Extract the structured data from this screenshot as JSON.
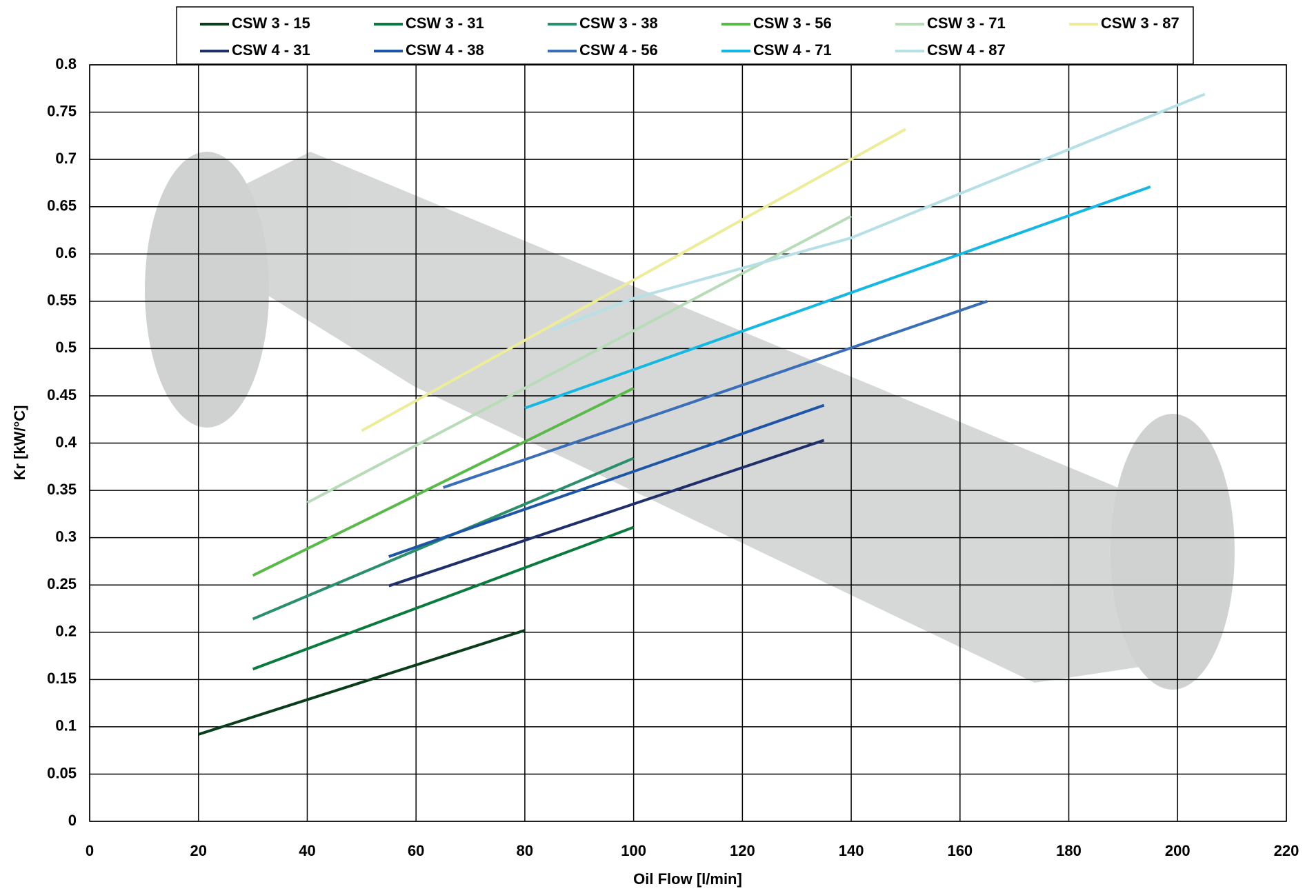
{
  "chart_data": {
    "type": "line",
    "x_label": "Oil Flow [l/min]",
    "y_label": "Kr [kW/°C]",
    "xlim": [
      0,
      220
    ],
    "xticks": [
      0,
      20,
      40,
      60,
      80,
      100,
      120,
      140,
      160,
      180,
      200,
      220
    ],
    "ylim": [
      0,
      0.8
    ],
    "yticks": [
      0,
      0.05,
      0.1,
      0.15,
      0.2,
      0.25,
      0.3,
      0.35,
      0.4,
      0.45,
      0.5,
      0.55,
      0.6,
      0.65,
      0.7,
      0.75,
      0.8
    ],
    "grid": true,
    "legend": "top",
    "series": [
      {
        "name": "CSW 3 - 15",
        "color": "#0a3d1a",
        "x": [
          20,
          80
        ],
        "values": [
          0.092,
          0.202
        ]
      },
      {
        "name": "CSW 3 - 31",
        "color": "#0b7a3e",
        "x": [
          30,
          100
        ],
        "values": [
          0.161,
          0.311
        ]
      },
      {
        "name": "CSW 3 - 38",
        "color": "#2a8f6a",
        "x": [
          30,
          100
        ],
        "values": [
          0.214,
          0.384
        ]
      },
      {
        "name": "CSW 3 - 56",
        "color": "#5bb84a",
        "x": [
          30,
          100
        ],
        "values": [
          0.26,
          0.458
        ]
      },
      {
        "name": "CSW 3 - 71",
        "color": "#b8dbb8",
        "x": [
          40,
          140
        ],
        "values": [
          0.337,
          0.64
        ]
      },
      {
        "name": "CSW 3 - 87",
        "color": "#ecec9a",
        "x": [
          50,
          150
        ],
        "values": [
          0.413,
          0.732
        ]
      },
      {
        "name": "CSW 4 - 31",
        "color": "#1f2f6b",
        "x": [
          55,
          135
        ],
        "values": [
          0.249,
          0.403
        ]
      },
      {
        "name": "CSW 4 - 38",
        "color": "#1f55a5",
        "x": [
          55,
          135
        ],
        "values": [
          0.28,
          0.44
        ]
      },
      {
        "name": "CSW 4 - 56",
        "color": "#3a6fb8",
        "x": [
          65,
          165
        ],
        "values": [
          0.353,
          0.55
        ]
      },
      {
        "name": "CSW 4 - 71",
        "color": "#16b7e0",
        "x": [
          80,
          195
        ],
        "values": [
          0.437,
          0.671
        ]
      },
      {
        "name": "CSW 4 - 87",
        "color": "#b7e0e6",
        "x": [
          85,
          100,
          140,
          205
        ],
        "values": [
          0.52,
          0.553,
          0.617,
          0.769
        ]
      }
    ]
  }
}
